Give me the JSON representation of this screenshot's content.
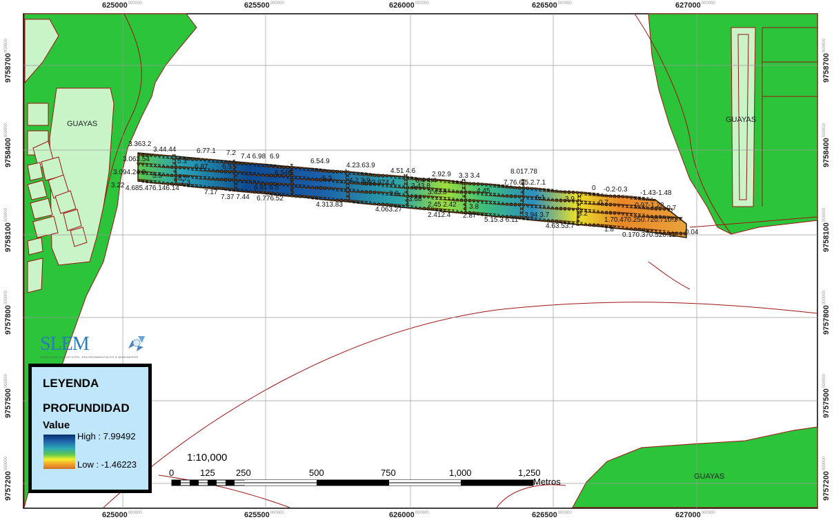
{
  "map": {
    "grid_labels": {
      "easting": [
        "625000",
        "625500",
        "626000",
        "626500",
        "627000"
      ],
      "northing": [
        "9758700",
        "9758400",
        "9758100",
        "9757800",
        "9757500",
        "9757200"
      ],
      "suffix": "000000"
    },
    "places": {
      "guayas_left": "GUAYAS",
      "guayas_right": "GUAYAS",
      "guayas_bottom": "GUAYAS"
    },
    "depth_labels": [
      {
        "text": "3.363.2"
      },
      {
        "text": "3.44.44"
      },
      {
        "text": "6.77.1"
      },
      {
        "text": "7.2"
      },
      {
        "text": "7.4 6.98"
      },
      {
        "text": "6.9"
      },
      {
        "text": "3.063.54"
      },
      {
        "text": "5.3"
      },
      {
        "text": "6.87"
      },
      {
        "text": "6.5"
      },
      {
        "text": "6.546"
      },
      {
        "text": "6.54.9"
      },
      {
        "text": "4.23.63.9"
      },
      {
        "text": "4.51 4.6"
      },
      {
        "text": "2.92.9"
      },
      {
        "text": "3.3 3.4"
      },
      {
        "text": "8.017.78"
      },
      {
        "text": "3.094.24.9"
      },
      {
        "text": "5.5"
      },
      {
        "text": "6.7"
      },
      {
        "text": "7.3"
      },
      {
        "text": "5.3"
      },
      {
        "text": "4.2 3.9"
      },
      {
        "text": "3.93.974.4"
      },
      {
        "text": "3.43.8"
      },
      {
        "text": "7.76.6.5.2.7.1"
      },
      {
        "text": "0"
      },
      {
        "text": "-0.2-0.3"
      },
      {
        "text": "-1.43-1.48"
      },
      {
        "text": "3.22"
      },
      {
        "text": "4.685.476.146.14"
      },
      {
        "text": "7.17"
      },
      {
        "text": "7.37 7.44"
      },
      {
        "text": "6.776.52"
      },
      {
        "text": "6.81 6.5"
      },
      {
        "text": "6.4 4.4"
      },
      {
        "text": "3.9"
      },
      {
        "text": "3.43.8"
      },
      {
        "text": "4.45"
      },
      {
        "text": "6.1"
      },
      {
        "text": "3.9"
      },
      {
        "text": "0.7"
      },
      {
        "text": "-0.97-1.28"
      },
      {
        "text": "-0.7"
      },
      {
        "text": "4.313.83"
      },
      {
        "text": "4.063.27"
      },
      {
        "text": "3.68"
      },
      {
        "text": "2.45 2.42"
      },
      {
        "text": "3.8"
      },
      {
        "text": "2.412.4"
      },
      {
        "text": "2.87"
      },
      {
        "text": "5.15.3 6.11"
      },
      {
        "text": "3.94 3.7"
      },
      {
        "text": "3.2"
      },
      {
        "text": "4.63.53.7"
      },
      {
        "text": "1.70.470.250.720.710.1"
      },
      {
        "text": "1.8"
      },
      {
        "text": "0.170.370.520.12"
      },
      {
        "text": "0.04"
      }
    ]
  },
  "logo": {
    "name": "SLEM",
    "tagline": "SERVICIOS LOGISTICOS, ENVIRONMENTALES & MARINEROS"
  },
  "legend": {
    "title": "LEYENDA",
    "subtitle": "PROFUNDIDAD",
    "value_label": "Value",
    "high": "High : 7.99492",
    "low": "Low : -1.46223",
    "ramp_colors": [
      "#08306b",
      "#1d5fa8",
      "#2da8b4",
      "#5ec84f",
      "#f1ee2c",
      "#f3a32a",
      "#d0702a"
    ]
  },
  "scale": {
    "ratio": "1:10,000",
    "ticks": [
      "0",
      "125",
      "250",
      "500",
      "750",
      "1,000",
      "1,250"
    ],
    "unit": "Metros"
  },
  "colors": {
    "land": "#2cc43a",
    "urban": "#c9f4c8",
    "river_line": "#a01010"
  }
}
